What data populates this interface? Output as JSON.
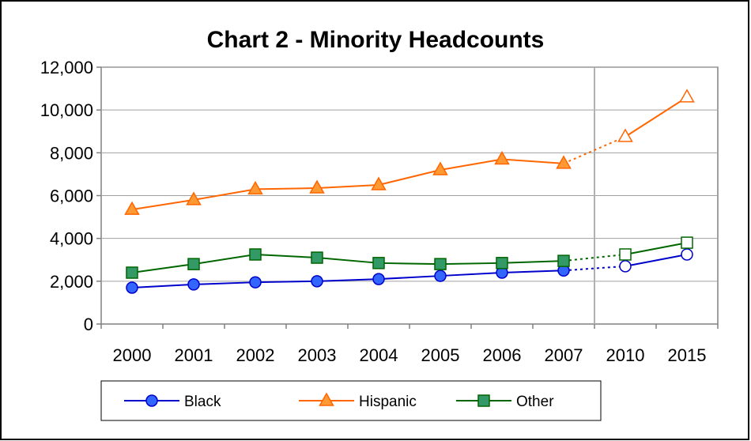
{
  "chart_data": {
    "type": "line",
    "title": "Chart 2 - Minority Headcounts",
    "xlabel": "",
    "ylabel": "",
    "categories": [
      "2000",
      "2001",
      "2002",
      "2003",
      "2004",
      "2005",
      "2006",
      "2007",
      "2010",
      "2015"
    ],
    "projected_from_index": 8,
    "ylim": [
      0,
      12000
    ],
    "yticks": [
      0,
      2000,
      4000,
      6000,
      8000,
      10000,
      12000
    ],
    "ytick_labels": [
      "0",
      "2,000",
      "4,000",
      "6,000",
      "8,000",
      "10,000",
      "12,000"
    ],
    "grid": "horizontal",
    "legend_position": "bottom",
    "series": [
      {
        "name": "Black",
        "color": "#0000cc",
        "fill": "#3366ff",
        "marker": "circle",
        "values": [
          1700,
          1850,
          1950,
          2000,
          2100,
          2250,
          2400,
          2500,
          2700,
          3250
        ]
      },
      {
        "name": "Hispanic",
        "color": "#ff6600",
        "fill": "#ff9933",
        "marker": "triangle",
        "values": [
          5350,
          5800,
          6300,
          6350,
          6500,
          7200,
          7700,
          7500,
          8750,
          10600
        ]
      },
      {
        "name": "Other",
        "color": "#006600",
        "fill": "#339966",
        "marker": "square",
        "values": [
          2400,
          2800,
          3250,
          3100,
          2850,
          2800,
          2850,
          2950,
          3250,
          3800
        ]
      }
    ]
  }
}
